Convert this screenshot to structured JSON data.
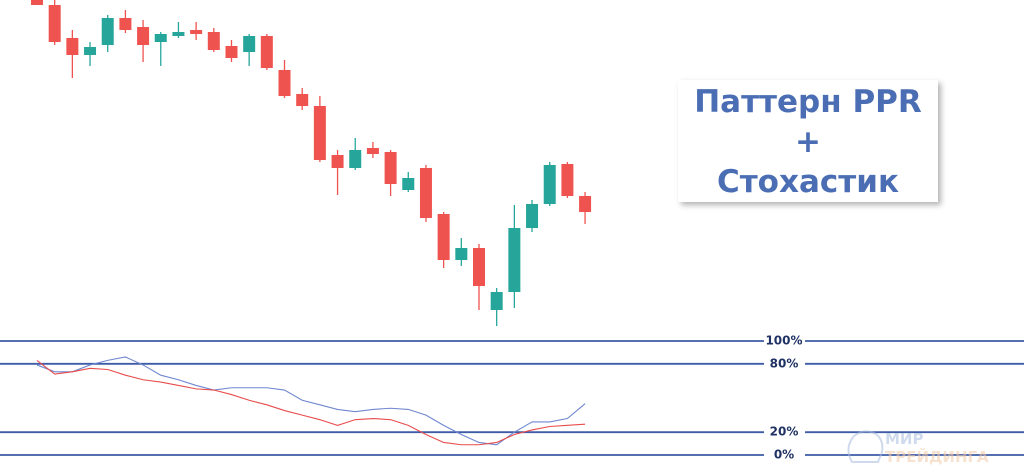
{
  "chart_data": [
    {
      "type": "candlestick",
      "ylim": [
        0,
        340
      ],
      "up_color": "#26a69a",
      "down_color": "#ef5350",
      "open": [
        340,
        335,
        302,
        285,
        295,
        322,
        313,
        298,
        304,
        310,
        308,
        294,
        288,
        304,
        270,
        246,
        234,
        185,
        172,
        192,
        188,
        150,
        172,
        126,
        80,
        92,
        30,
        48,
        112,
        136,
        176,
        144
      ],
      "high": [
        340,
        340,
        310,
        298,
        325,
        330,
        320,
        308,
        318,
        318,
        312,
        300,
        306,
        306,
        280,
        252,
        244,
        190,
        202,
        198,
        190,
        168,
        175,
        128,
        102,
        96,
        52,
        135,
        140,
        178,
        178,
        148
      ],
      "low": [
        335,
        295,
        262,
        274,
        288,
        307,
        278,
        274,
        302,
        300,
        288,
        278,
        274,
        270,
        242,
        230,
        178,
        145,
        170,
        182,
        144,
        148,
        118,
        72,
        74,
        30,
        14,
        32,
        108,
        134,
        142,
        116
      ],
      "close": [
        335,
        298,
        285,
        293,
        322,
        310,
        295,
        306,
        308,
        306,
        290,
        282,
        304,
        272,
        244,
        234,
        180,
        172,
        190,
        186,
        156,
        162,
        122,
        80,
        92,
        54,
        48,
        112,
        136,
        175,
        144,
        128
      ],
      "annotations": [
        "Паттерн PPR",
        "+",
        "Стохастик"
      ]
    },
    {
      "type": "line",
      "ylim": [
        0,
        100
      ],
      "yticks": [
        {
          "value": 100,
          "label": "100%"
        },
        {
          "value": 80,
          "label": "80%"
        },
        {
          "value": 20,
          "label": "20%"
        },
        {
          "value": 0,
          "label": "0%"
        }
      ],
      "tick_color": "#3d5ba6",
      "series": [
        {
          "color": "#6f87d0",
          "values": [
            79,
            73,
            73,
            79,
            83,
            86,
            79,
            70,
            66,
            61,
            57,
            59,
            59,
            59,
            57,
            48,
            44,
            40,
            38,
            40,
            41,
            40,
            35,
            26,
            18,
            11,
            9,
            20,
            29,
            29,
            32,
            45
          ]
        },
        {
          "color": "#e84c4c",
          "values": [
            83,
            71,
            73,
            76,
            75,
            70,
            66,
            64,
            61,
            58,
            57,
            53,
            48,
            44,
            39,
            35,
            31,
            26,
            31,
            32,
            31,
            26,
            18,
            11,
            9,
            9,
            11,
            18,
            22,
            25,
            26,
            27
          ]
        }
      ],
      "watermark": [
        "МИР",
        "ТРЕЙДИНГА"
      ]
    }
  ]
}
